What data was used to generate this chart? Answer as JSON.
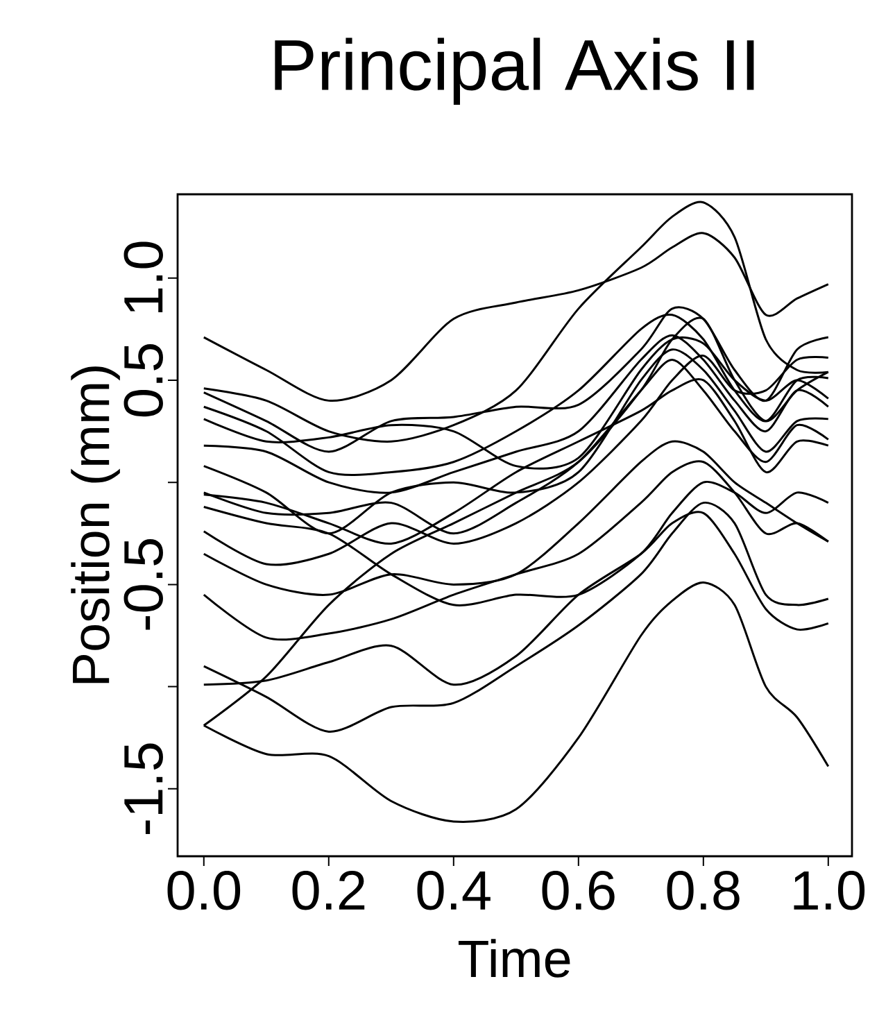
{
  "chart_data": {
    "type": "line",
    "title": "Principal Axis II",
    "xlabel": "Time",
    "ylabel": "Position (mm)",
    "x": [
      0,
      0.1,
      0.2,
      0.3,
      0.4,
      0.5,
      0.6,
      0.7,
      0.75,
      0.8,
      0.85,
      0.9,
      0.95,
      1.0
    ],
    "xlim": [
      -0.042,
      1.038
    ],
    "ylim": [
      -1.83,
      1.41
    ],
    "xticks": [
      {
        "value": 0,
        "label": "0.0"
      },
      {
        "value": 0.2,
        "label": "0.2"
      },
      {
        "value": 0.4,
        "label": "0.4"
      },
      {
        "value": 0.6,
        "label": "0.6"
      },
      {
        "value": 0.8,
        "label": "0.8"
      },
      {
        "value": 1.0,
        "label": "1.0"
      }
    ],
    "yticks": [
      {
        "value": -1.5,
        "label": "-1.5"
      },
      {
        "value": -1.0,
        "label": null
      },
      {
        "value": -0.5,
        "label": "-0.5"
      },
      {
        "value": 0,
        "label": null
      },
      {
        "value": 0.5,
        "label": "0.5"
      },
      {
        "value": 1.0,
        "label": "1.0"
      }
    ],
    "series": [
      {
        "color": "#000000",
        "values": [
          0.71,
          0.55,
          0.4,
          0.5,
          0.8,
          0.88,
          0.94,
          1.05,
          1.15,
          1.22,
          1.1,
          0.82,
          0.9,
          0.97
        ]
      },
      {
        "color": "#000000",
        "values": [
          0.46,
          0.4,
          0.25,
          0.2,
          0.28,
          0.45,
          0.85,
          1.15,
          1.3,
          1.37,
          1.2,
          0.7,
          0.55,
          0.54
        ]
      },
      {
        "color": "#000000",
        "values": [
          0.44,
          0.3,
          0.15,
          0.3,
          0.32,
          0.37,
          0.38,
          0.65,
          0.85,
          0.8,
          0.55,
          0.4,
          0.65,
          0.71
        ]
      },
      {
        "color": "#000000",
        "values": [
          0.37,
          0.25,
          0.05,
          0.05,
          0.1,
          0.25,
          0.45,
          0.75,
          0.82,
          0.7,
          0.45,
          0.3,
          0.5,
          0.51
        ]
      },
      {
        "color": "#000000",
        "values": [
          0.31,
          0.2,
          0.22,
          0.28,
          0.25,
          0.08,
          0.12,
          0.55,
          0.7,
          0.68,
          0.5,
          0.4,
          0.5,
          0.41
        ]
      },
      {
        "color": "#000000",
        "values": [
          0.18,
          0.15,
          0.0,
          -0.05,
          0.05,
          0.15,
          0.25,
          0.6,
          0.72,
          0.6,
          0.4,
          0.25,
          0.45,
          0.37
        ]
      },
      {
        "color": "#000000",
        "values": [
          0.08,
          -0.05,
          -0.25,
          -0.05,
          0.0,
          -0.05,
          0.05,
          0.5,
          0.65,
          0.55,
          0.35,
          0.15,
          0.3,
          0.31
        ]
      },
      {
        "color": "#000000",
        "values": [
          -0.05,
          -0.15,
          -0.15,
          -0.1,
          -0.25,
          -0.1,
          0.1,
          0.45,
          0.6,
          0.45,
          0.25,
          0.1,
          0.28,
          0.21
        ]
      },
      {
        "color": "#000000",
        "values": [
          -0.06,
          -0.1,
          -0.2,
          -0.3,
          -0.15,
          0.05,
          0.2,
          0.35,
          0.45,
          0.5,
          0.3,
          0.05,
          0.2,
          0.18
        ]
      },
      {
        "color": "#000000",
        "values": [
          -0.12,
          -0.2,
          -0.25,
          -0.45,
          -0.6,
          -0.55,
          -0.55,
          -0.35,
          -0.15,
          0.0,
          -0.05,
          -0.15,
          -0.05,
          -0.1
        ]
      },
      {
        "color": "#000000",
        "values": [
          -0.24,
          -0.4,
          -0.35,
          -0.2,
          -0.3,
          -0.2,
          0.0,
          0.3,
          0.5,
          0.62,
          0.45,
          0.45,
          0.6,
          0.61
        ]
      },
      {
        "color": "#000000",
        "values": [
          -0.35,
          -0.5,
          -0.55,
          -0.45,
          -0.5,
          -0.45,
          -0.2,
          0.1,
          0.2,
          0.15,
          0.0,
          -0.1,
          -0.2,
          -0.29
        ]
      },
      {
        "color": "#000000",
        "values": [
          -0.55,
          -0.76,
          -0.74,
          -0.67,
          -0.55,
          -0.45,
          -0.35,
          -0.1,
          0.05,
          0.1,
          -0.05,
          -0.25,
          -0.2,
          -0.29
        ]
      },
      {
        "color": "#000000",
        "values": [
          -0.9,
          -1.05,
          -1.22,
          -1.1,
          -1.08,
          -0.9,
          -0.7,
          -0.45,
          -0.25,
          -0.1,
          -0.2,
          -0.55,
          -0.6,
          -0.57
        ]
      },
      {
        "color": "#000000",
        "values": [
          -0.99,
          -0.97,
          -0.88,
          -0.8,
          -0.99,
          -0.85,
          -0.55,
          -0.35,
          -0.2,
          -0.15,
          -0.35,
          -0.62,
          -0.72,
          -0.69
        ]
      },
      {
        "color": "#000000",
        "values": [
          -1.19,
          -0.95,
          -0.6,
          -0.35,
          -0.2,
          -0.05,
          0.1,
          0.45,
          0.7,
          0.8,
          0.5,
          0.3,
          0.45,
          0.54
        ]
      },
      {
        "color": "#000000",
        "values": [
          -1.19,
          -1.33,
          -1.34,
          -1.56,
          -1.66,
          -1.6,
          -1.25,
          -0.75,
          -0.58,
          -0.49,
          -0.6,
          -1.0,
          -1.15,
          -1.39
        ]
      }
    ]
  }
}
